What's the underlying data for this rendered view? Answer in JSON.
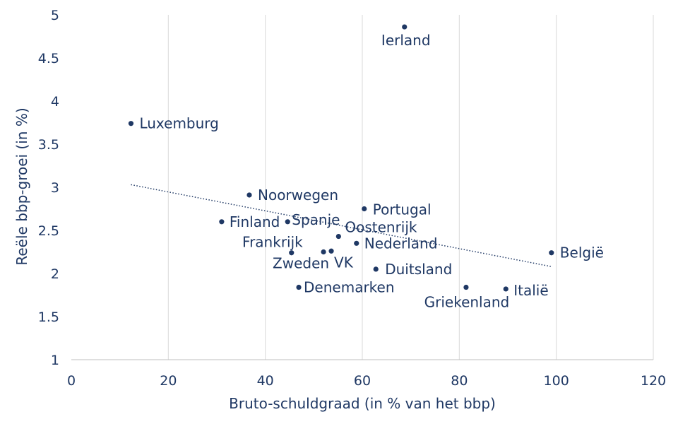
{
  "chart_data": {
    "type": "scatter",
    "title": "",
    "xlabel": "Bruto-schuldgraad (in % van het bbp)",
    "ylabel": "Reële bbp-groei (in %)",
    "xlim": [
      0,
      120
    ],
    "ylim": [
      1,
      5
    ],
    "xticks": [
      0,
      20,
      40,
      60,
      80,
      100,
      120
    ],
    "xtick_labels": [
      "0",
      "20",
      "40",
      "60",
      "80",
      "100",
      "120"
    ],
    "yticks": [
      1,
      1.5,
      2,
      2.5,
      3,
      3.5,
      4,
      4.5,
      5
    ],
    "ytick_labels": [
      "1",
      "1.5",
      "2",
      "2.5",
      "3",
      "3.5",
      "4",
      "4.5",
      "5"
    ],
    "grid": "vertical",
    "legend": "none",
    "marker_color": "#1f3864",
    "points": [
      {
        "label": "Ierland",
        "x": 68.7,
        "y": 4.86
      },
      {
        "label": "Luxemburg",
        "x": 12.3,
        "y": 3.74
      },
      {
        "label": "Noorwegen",
        "x": 36.7,
        "y": 2.91
      },
      {
        "label": "Portugal",
        "x": 60.4,
        "y": 2.75
      },
      {
        "label": "Finland",
        "x": 31.0,
        "y": 2.6
      },
      {
        "label": "Spanje",
        "x": 44.6,
        "y": 2.6
      },
      {
        "label": "Oostenrijk",
        "x": 55.1,
        "y": 2.43
      },
      {
        "label": "Nederland",
        "x": 58.8,
        "y": 2.35
      },
      {
        "label": "Frankrijk",
        "x": 45.4,
        "y": 2.24
      },
      {
        "label": "Zweden",
        "x": 52.0,
        "y": 2.25
      },
      {
        "label": "VK",
        "x": 53.6,
        "y": 2.26
      },
      {
        "label": "België",
        "x": 99.0,
        "y": 2.24
      },
      {
        "label": "Duitsland",
        "x": 62.8,
        "y": 2.05
      },
      {
        "label": "Denemarken",
        "x": 46.9,
        "y": 1.84
      },
      {
        "label": "Griekenland",
        "x": 81.4,
        "y": 1.84
      },
      {
        "label": "Italië",
        "x": 89.6,
        "y": 1.82
      }
    ],
    "trendline": {
      "style": "dotted",
      "x": [
        12.3,
        99.0
      ],
      "y": [
        3.03,
        2.08
      ]
    }
  }
}
